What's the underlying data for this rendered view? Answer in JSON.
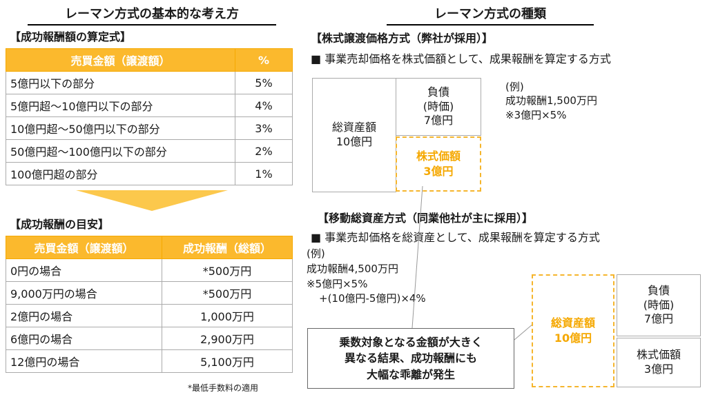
{
  "left": {
    "title": "レーマン方式の基本的な考え方",
    "table1": {
      "caption": "【成功報酬額の算定式】",
      "headers": [
        "売買金額（譲渡額）",
        "%"
      ],
      "rows": [
        [
          "5億円以下の部分",
          "5%"
        ],
        [
          "5億円超～10億円以下の部分",
          "4%"
        ],
        [
          "10億円超～50億円以下の部分",
          "3%"
        ],
        [
          "50億円超～100億円以下の部分",
          "2%"
        ],
        [
          "100億円超の部分",
          "1%"
        ]
      ]
    },
    "table2": {
      "caption": "【成功報酬の目安】",
      "headers": [
        "売買金額（譲渡額）",
        "成功報酬（総額）"
      ],
      "rows": [
        [
          "0円の場合",
          "*500万円"
        ],
        [
          "9,000万円の場合",
          "*500万円"
        ],
        [
          "2億円の場合",
          "1,000万円"
        ],
        [
          "6億円の場合",
          "2,900万円"
        ],
        [
          "12億円の場合",
          "5,100万円"
        ]
      ]
    },
    "footnote": "*最低手数料の適用"
  },
  "right": {
    "title": "レーマン方式の種類",
    "method1": {
      "heading": "【株式譲渡価格方式（弊社が採用）】",
      "desc": "■ 事業売却価格を株式価額として、成果報酬を算定する方式",
      "assets": [
        "総資産額",
        "10億円"
      ],
      "debt": [
        "負債",
        "(時価)",
        "7億円"
      ],
      "equity": [
        "株式価額",
        "3億円"
      ],
      "example": [
        "(例)",
        "成功報酬1,500万円",
        "※3億円×5%"
      ]
    },
    "method2": {
      "heading": "【移動総資産方式（同業他社が主に採用）】",
      "desc": "■ 事業売却価格を総資産として、成果報酬を算定する方式",
      "example": [
        "(例)",
        "成功報酬4,500万円",
        "※5億円×5%",
        "+(10億円-5億円)×4%"
      ],
      "assets": [
        "総資産額",
        "10億円"
      ],
      "debt": [
        "負債",
        "(時価)",
        "7億円"
      ],
      "equity": [
        "株式価額",
        "3億円"
      ],
      "callout": [
        "乗数対象となる金額が大きく",
        "異なる結果、成功報酬にも",
        "大幅な乖離が発生"
      ]
    }
  }
}
